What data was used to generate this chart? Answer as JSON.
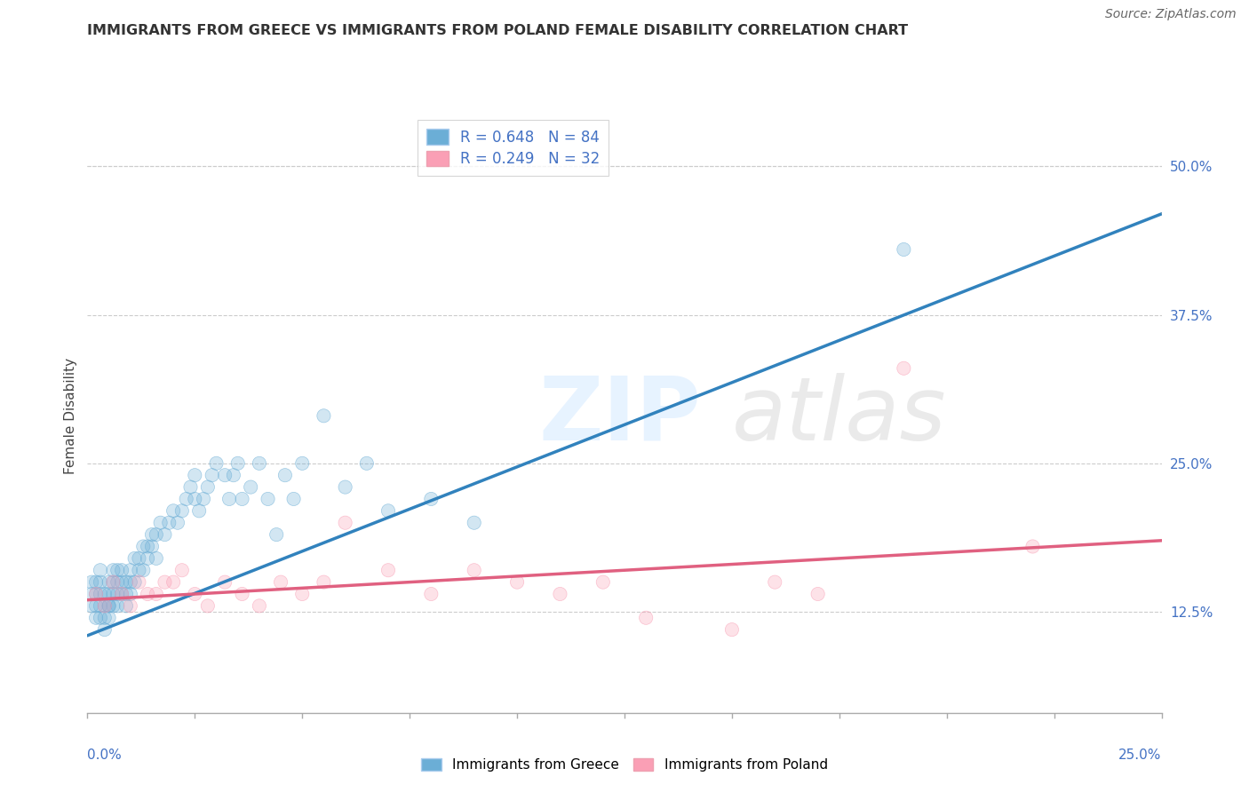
{
  "title": "IMMIGRANTS FROM GREECE VS IMMIGRANTS FROM POLAND FEMALE DISABILITY CORRELATION CHART",
  "source": "Source: ZipAtlas.com",
  "ylabel": "Female Disability",
  "right_yticks": [
    0.125,
    0.25,
    0.375,
    0.5
  ],
  "right_yticklabels": [
    "12.5%",
    "25.0%",
    "37.5%",
    "50.0%"
  ],
  "xlim": [
    0.0,
    0.25
  ],
  "ylim": [
    0.04,
    0.54
  ],
  "greece_color": "#6baed6",
  "poland_color": "#fa9fb5",
  "greece_line_color": "#3182bd",
  "poland_line_color": "#e06080",
  "greece_R": 0.648,
  "greece_N": 84,
  "poland_R": 0.249,
  "poland_N": 32,
  "greece_scatter_x": [
    0.001,
    0.001,
    0.001,
    0.002,
    0.002,
    0.002,
    0.002,
    0.003,
    0.003,
    0.003,
    0.003,
    0.003,
    0.004,
    0.004,
    0.004,
    0.004,
    0.005,
    0.005,
    0.005,
    0.005,
    0.005,
    0.006,
    0.006,
    0.006,
    0.006,
    0.007,
    0.007,
    0.007,
    0.007,
    0.008,
    0.008,
    0.008,
    0.009,
    0.009,
    0.009,
    0.01,
    0.01,
    0.01,
    0.011,
    0.011,
    0.012,
    0.012,
    0.013,
    0.013,
    0.014,
    0.014,
    0.015,
    0.015,
    0.016,
    0.016,
    0.017,
    0.018,
    0.019,
    0.02,
    0.021,
    0.022,
    0.023,
    0.024,
    0.025,
    0.025,
    0.026,
    0.027,
    0.028,
    0.029,
    0.03,
    0.032,
    0.033,
    0.034,
    0.035,
    0.036,
    0.038,
    0.04,
    0.042,
    0.044,
    0.046,
    0.048,
    0.05,
    0.055,
    0.06,
    0.065,
    0.07,
    0.08,
    0.09,
    0.19
  ],
  "greece_scatter_y": [
    0.14,
    0.13,
    0.15,
    0.13,
    0.14,
    0.12,
    0.15,
    0.13,
    0.12,
    0.14,
    0.15,
    0.16,
    0.13,
    0.14,
    0.12,
    0.11,
    0.13,
    0.14,
    0.15,
    0.12,
    0.13,
    0.14,
    0.13,
    0.15,
    0.16,
    0.14,
    0.15,
    0.13,
    0.16,
    0.14,
    0.15,
    0.16,
    0.14,
    0.15,
    0.13,
    0.15,
    0.16,
    0.14,
    0.17,
    0.15,
    0.16,
    0.17,
    0.18,
    0.16,
    0.17,
    0.18,
    0.19,
    0.18,
    0.17,
    0.19,
    0.2,
    0.19,
    0.2,
    0.21,
    0.2,
    0.21,
    0.22,
    0.23,
    0.22,
    0.24,
    0.21,
    0.22,
    0.23,
    0.24,
    0.25,
    0.24,
    0.22,
    0.24,
    0.25,
    0.22,
    0.23,
    0.25,
    0.22,
    0.19,
    0.24,
    0.22,
    0.25,
    0.29,
    0.23,
    0.25,
    0.21,
    0.22,
    0.2,
    0.43
  ],
  "poland_scatter_x": [
    0.002,
    0.004,
    0.006,
    0.008,
    0.01,
    0.012,
    0.014,
    0.016,
    0.018,
    0.02,
    0.022,
    0.025,
    0.028,
    0.032,
    0.036,
    0.04,
    0.045,
    0.05,
    0.055,
    0.06,
    0.07,
    0.08,
    0.09,
    0.1,
    0.11,
    0.12,
    0.13,
    0.15,
    0.16,
    0.17,
    0.19,
    0.22
  ],
  "poland_scatter_y": [
    0.14,
    0.13,
    0.15,
    0.14,
    0.13,
    0.15,
    0.14,
    0.14,
    0.15,
    0.15,
    0.16,
    0.14,
    0.13,
    0.15,
    0.14,
    0.13,
    0.15,
    0.14,
    0.15,
    0.2,
    0.16,
    0.14,
    0.16,
    0.15,
    0.14,
    0.15,
    0.12,
    0.11,
    0.15,
    0.14,
    0.33,
    0.18
  ],
  "greece_line_x0": 0.0,
  "greece_line_y0": 0.105,
  "greece_line_x1": 0.25,
  "greece_line_y1": 0.46,
  "poland_line_x0": 0.0,
  "poland_line_y0": 0.135,
  "poland_line_x1": 0.25,
  "poland_line_y1": 0.185
}
